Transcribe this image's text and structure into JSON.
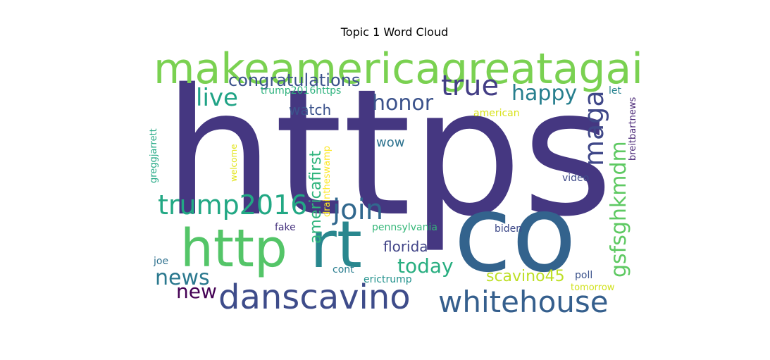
{
  "chart_data": {
    "type": "wordcloud",
    "title": "Topic 1 Word Cloud",
    "words": [
      {
        "text": "https",
        "weight": 1.0,
        "color": "#453781"
      },
      {
        "text": "co",
        "weight": 0.78,
        "color": "#33638d"
      },
      {
        "text": "makeamericagreatagain",
        "weight": 0.45,
        "color": "#7ad151"
      },
      {
        "text": "rt",
        "weight": 0.42,
        "color": "#29878e"
      },
      {
        "text": "http",
        "weight": 0.38,
        "color": "#54c568"
      },
      {
        "text": "danscavino",
        "weight": 0.3,
        "color": "#3e4c8a"
      },
      {
        "text": "whitehouse",
        "weight": 0.26,
        "color": "#355f8d"
      },
      {
        "text": "trump2016",
        "weight": 0.22,
        "color": "#22a884"
      },
      {
        "text": "join",
        "weight": 0.22,
        "color": "#31688e"
      },
      {
        "text": "maga",
        "weight": 0.22,
        "color": "#3f4788"
      },
      {
        "text": "true",
        "weight": 0.2,
        "color": "#433e85"
      },
      {
        "text": "gsfsghkmdm",
        "weight": 0.18,
        "color": "#5ec962"
      },
      {
        "text": "honor",
        "weight": 0.16,
        "color": "#3b528b"
      },
      {
        "text": "live",
        "weight": 0.16,
        "color": "#20a386"
      },
      {
        "text": "happy",
        "weight": 0.16,
        "color": "#277f8e"
      },
      {
        "text": "news",
        "weight": 0.16,
        "color": "#2a788e"
      },
      {
        "text": "today",
        "weight": 0.15,
        "color": "#28ae80"
      },
      {
        "text": "new",
        "weight": 0.14,
        "color": "#440154"
      },
      {
        "text": "congratulations",
        "weight": 0.13,
        "color": "#3b528b"
      },
      {
        "text": "americafirst",
        "weight": 0.12,
        "color": "#2fb47c"
      },
      {
        "text": "scavino45",
        "weight": 0.12,
        "color": "#bddf26"
      },
      {
        "text": "florida",
        "weight": 0.11,
        "color": "#414487"
      },
      {
        "text": "watch",
        "weight": 0.1,
        "color": "#3b528b"
      },
      {
        "text": "wow",
        "weight": 0.09,
        "color": "#2c728e"
      },
      {
        "text": "pennsylvania",
        "weight": 0.08,
        "color": "#35b779"
      },
      {
        "text": "drainthes wamp",
        "weight": 0.07,
        "color": "#fde725"
      },
      {
        "text": "erictrump",
        "weight": 0.07,
        "color": "#21918c"
      },
      {
        "text": "trump2016https",
        "weight": 0.07,
        "color": "#2db27d"
      },
      {
        "text": "biden",
        "weight": 0.07,
        "color": "#3e4989"
      },
      {
        "text": "video",
        "weight": 0.07,
        "color": "#3e4a89"
      },
      {
        "text": "breitbartnews",
        "weight": 0.07,
        "color": "#482576"
      },
      {
        "text": "greggjarrett",
        "weight": 0.07,
        "color": "#22a884"
      },
      {
        "text": "american",
        "weight": 0.07,
        "color": "#d8e219"
      },
      {
        "text": "fake",
        "weight": 0.07,
        "color": "#46327e"
      },
      {
        "text": "cont",
        "weight": 0.07,
        "color": "#287c8e"
      },
      {
        "text": "joe",
        "weight": 0.07,
        "color": "#2d708e"
      },
      {
        "text": "poll",
        "weight": 0.07,
        "color": "#3b528b"
      },
      {
        "text": "tomorrow",
        "weight": 0.07,
        "color": "#d0e11c"
      },
      {
        "text": "let",
        "weight": 0.07,
        "color": "#26828e"
      },
      {
        "text": "welcome",
        "weight": 0.06,
        "color": "#e2e418"
      }
    ]
  }
}
